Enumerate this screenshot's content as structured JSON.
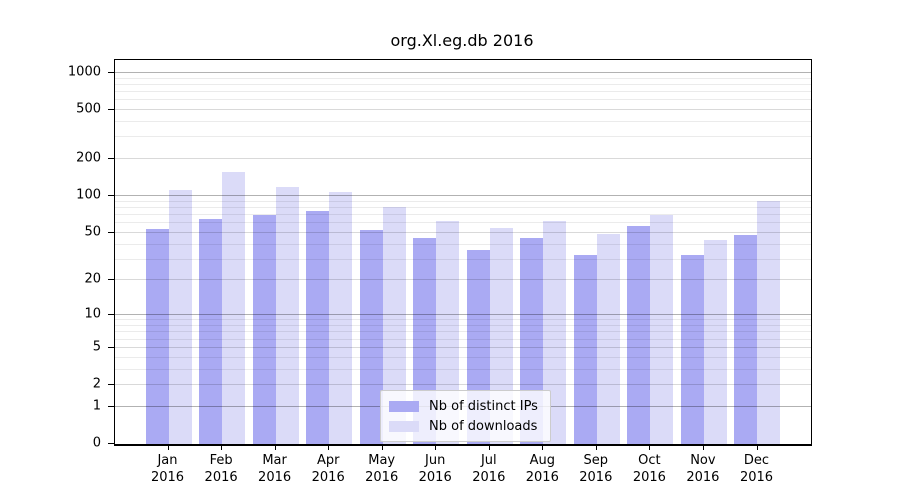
{
  "chart_data": {
    "type": "bar",
    "title": "org.Xl.eg.db 2016",
    "categories": [
      "Jan",
      "Feb",
      "Mar",
      "Apr",
      "May",
      "Jun",
      "Jul",
      "Aug",
      "Sep",
      "Oct",
      "Nov",
      "Dec"
    ],
    "category_year": "2016",
    "series": [
      {
        "name": "Nb of distinct IPs",
        "color": "#aaaaf3",
        "values": [
          54,
          65,
          70,
          75,
          53,
          45,
          36,
          45,
          33,
          57,
          33,
          48
        ]
      },
      {
        "name": "Nb of downloads",
        "color": "#dbdbf8",
        "values": [
          113,
          156,
          119,
          109,
          82,
          63,
          55,
          62,
          49,
          70,
          44,
          91
        ]
      }
    ],
    "xlabel": "",
    "ylabel": "",
    "y_scale": "log10(value+1), zero at baseline",
    "y_ticks": [
      0,
      1,
      2,
      5,
      10,
      20,
      50,
      100,
      200,
      500,
      1000
    ],
    "y_minor_ticks": [
      3,
      4,
      6,
      7,
      8,
      9,
      30,
      40,
      60,
      70,
      80,
      90,
      300,
      400,
      600,
      700,
      800,
      900
    ],
    "ylim": [
      0,
      1200
    ],
    "grid": true,
    "legend_position": "lower center inside plot"
  },
  "colors": {
    "background": "#ffffff",
    "spine": "#000000",
    "grid_power_of_ten": "#b3b3b3",
    "grid_major": "#d9d9d9",
    "grid_minor": "#ebebeb",
    "legend_border": "#cccccc",
    "legend_background": "rgba(255,255,255,0.8)"
  }
}
